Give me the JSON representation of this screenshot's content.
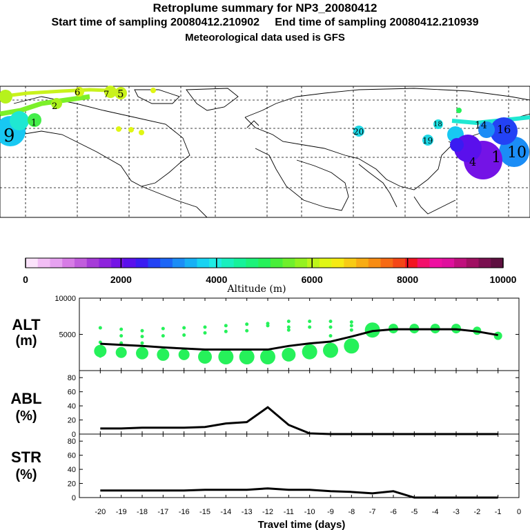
{
  "header": {
    "title": "Retroplume summary for NP3_20080412",
    "line2": "Start time of sampling 20080412.210902     End time of sampling 20080412.210939",
    "line3": "Meteorological data used is GFS"
  },
  "map": {
    "cluster_labels": [
      "6",
      "5",
      "1",
      "2",
      "9",
      "20",
      "19",
      "18",
      "14",
      "16",
      "10",
      "7",
      "4",
      "1"
    ]
  },
  "colorbar": {
    "title": "Altitude (m)",
    "tick_labels": [
      "0",
      "2000",
      "4000",
      "6000",
      "8000",
      "10000"
    ],
    "colors": [
      "#fbe3fb",
      "#f2bef5",
      "#e6a2f0",
      "#d77ce6",
      "#c15ddd",
      "#a63bd8",
      "#8e23dd",
      "#7413e6",
      "#5a10ec",
      "#3a1cf2",
      "#2342f5",
      "#1c66f6",
      "#1b8df6",
      "#17b0f5",
      "#18d3f2",
      "#1fece4",
      "#19f0be",
      "#16f29a",
      "#1cf27a",
      "#26f15a",
      "#48ef3a",
      "#6ff02c",
      "#94f21f",
      "#bdf51a",
      "#e0f614",
      "#f6ea13",
      "#f8cb14",
      "#f8ac14",
      "#f78c13",
      "#f66a14",
      "#f44616",
      "#f21420",
      "#f3106b",
      "#ef10a1",
      "#df109d",
      "#c0107d",
      "#a01062",
      "#7a1050",
      "#5e1040"
    ]
  },
  "chart_data": [
    {
      "type": "line",
      "panel": "ALT",
      "ylabel": "ALT\n(m)",
      "ylim": [
        0,
        10000
      ],
      "y_ticks": [
        "5000",
        "10000"
      ],
      "x": [
        -20,
        -19,
        -18,
        -17,
        -16,
        -15,
        -14,
        -13,
        -12,
        -11,
        -10,
        -9,
        -8,
        -7,
        -6,
        -5,
        -4,
        -3,
        -2,
        -1
      ],
      "values": [
        3700,
        3550,
        3400,
        3200,
        3050,
        2900,
        2900,
        2900,
        2900,
        3400,
        3750,
        4000,
        4700,
        5450,
        5700,
        5700,
        5700,
        5700,
        5400,
        4900
      ],
      "cluster_means": [
        2700,
        2500,
        2400,
        2200,
        2200,
        1900,
        1900,
        1900,
        1900,
        2200,
        2600,
        2800,
        3400,
        5600,
        5800,
        5800,
        5800,
        5800,
        5500,
        4800
      ],
      "cluster_sizes": [
        9,
        8,
        9,
        9,
        8,
        10,
        11,
        11,
        11,
        10,
        11,
        11,
        11,
        11,
        7,
        7,
        7,
        7,
        6,
        6
      ],
      "upper_dots": [
        {
          "x": -20,
          "y": 3900
        },
        {
          "x": -20,
          "y": 3000
        },
        {
          "x": -20,
          "y": 2000
        },
        {
          "x": -20,
          "y": 5900
        },
        {
          "x": -19,
          "y": 5700
        },
        {
          "x": -19,
          "y": 4800
        },
        {
          "x": -19,
          "y": 3800
        },
        {
          "x": -19,
          "y": 2500
        },
        {
          "x": -18,
          "y": 5500
        },
        {
          "x": -18,
          "y": 4700
        },
        {
          "x": -18,
          "y": 3800
        },
        {
          "x": -17,
          "y": 5800
        },
        {
          "x": -17,
          "y": 4800
        },
        {
          "x": -16,
          "y": 5900
        },
        {
          "x": -16,
          "y": 4900
        },
        {
          "x": -15,
          "y": 6000
        },
        {
          "x": -15,
          "y": 5200
        },
        {
          "x": -14,
          "y": 6200
        },
        {
          "x": -14,
          "y": 5400
        },
        {
          "x": -13,
          "y": 6400
        },
        {
          "x": -13,
          "y": 5500
        },
        {
          "x": -12,
          "y": 6500
        },
        {
          "x": -12,
          "y": 6200
        },
        {
          "x": -11,
          "y": 6800
        },
        {
          "x": -11,
          "y": 6000
        },
        {
          "x": -11,
          "y": 5600
        },
        {
          "x": -10,
          "y": 6800
        },
        {
          "x": -10,
          "y": 6000
        },
        {
          "x": -9,
          "y": 6800
        },
        {
          "x": -9,
          "y": 6000
        },
        {
          "x": -9,
          "y": 4800
        },
        {
          "x": -8,
          "y": 6700
        },
        {
          "x": -8,
          "y": 6200
        },
        {
          "x": -8,
          "y": 5600
        }
      ]
    },
    {
      "type": "line",
      "panel": "ABL",
      "ylabel": "ABL\n(%)",
      "ylim": [
        0,
        90
      ],
      "y_ticks": [
        "0",
        "20",
        "40",
        "60",
        "80"
      ],
      "x": [
        -20,
        -19,
        -18,
        -17,
        -16,
        -15,
        -14,
        -13,
        -12,
        -11,
        -10,
        -9,
        -8,
        -7,
        -6,
        -5,
        -4,
        -3,
        -2,
        -1
      ],
      "values": [
        8,
        8,
        9,
        9,
        9,
        10,
        15,
        17,
        38,
        13,
        1,
        0,
        0,
        0,
        0,
        0,
        0,
        0,
        0,
        0
      ]
    },
    {
      "type": "line",
      "panel": "STR",
      "ylabel": "STR\n(%)",
      "ylim": [
        0,
        90
      ],
      "y_ticks": [
        "0",
        "20",
        "40",
        "60",
        "80"
      ],
      "x": [
        -20,
        -19,
        -18,
        -17,
        -16,
        -15,
        -14,
        -13,
        -12,
        -11,
        -10,
        -9,
        -8,
        -7,
        -6,
        -5,
        -4,
        -3,
        -2,
        -1
      ],
      "values": [
        10,
        10,
        10,
        10,
        10,
        11,
        11,
        11,
        13,
        11,
        11,
        9,
        8,
        6,
        9,
        0,
        0,
        0,
        0,
        0
      ],
      "xlabel": "Travel time (days)",
      "x_ticks": [
        "-20",
        "-19",
        "-18",
        "-17",
        "-16",
        "-15",
        "-14",
        "-13",
        "-12",
        "-11",
        "-10",
        "-9",
        "-8",
        "-7",
        "-6",
        "-5",
        "-4",
        "-3",
        "-2",
        "-1",
        "0"
      ]
    }
  ]
}
